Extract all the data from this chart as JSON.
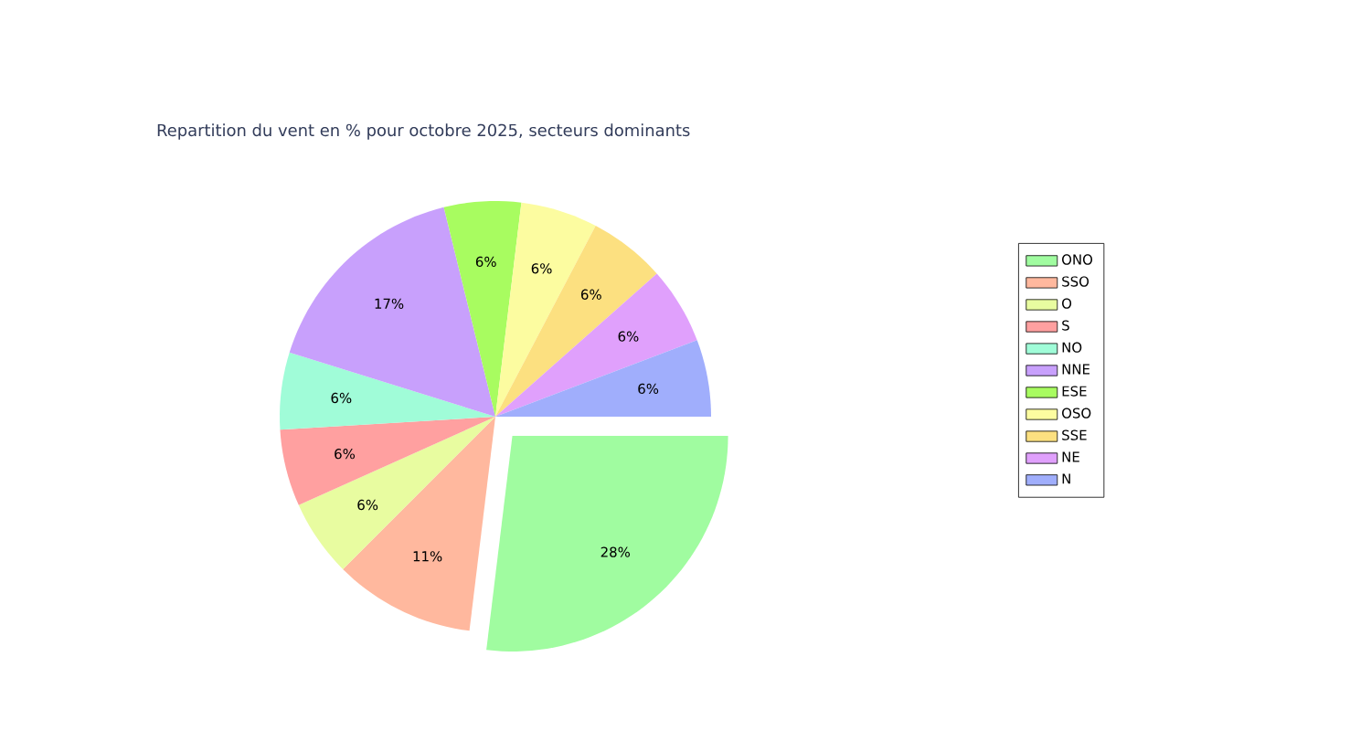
{
  "chart_data": {
    "type": "pie",
    "title": "Repartition du vent en % pour octobre 2025, secteurs dominants",
    "categories": [
      "ONO",
      "SSO",
      "O",
      "S",
      "NO",
      "NNE",
      "ESE",
      "OSO",
      "SSE",
      "NE",
      "N"
    ],
    "values": [
      28,
      11,
      6,
      6,
      6,
      17,
      6,
      6,
      6,
      6,
      6
    ],
    "value_labels": [
      "28%",
      "11%",
      "6%",
      "6%",
      "6%",
      "17%",
      "6%",
      "6%",
      "6%",
      "6%",
      "6%"
    ],
    "colors": [
      "#a0fca0",
      "#ffb89e",
      "#e8fca0",
      "#ffa0a0",
      "#a0fcd8",
      "#c8a0fc",
      "#a8fc60",
      "#fcfca0",
      "#fce080",
      "#e0a0fc",
      "#a0aefc"
    ],
    "legend": "right"
  }
}
